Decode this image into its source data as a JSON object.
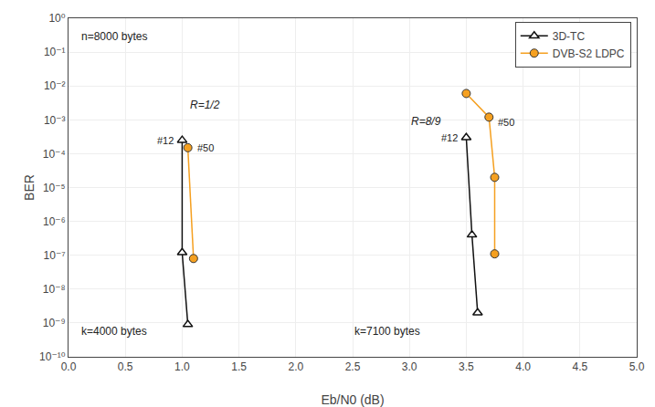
{
  "chart_data": {
    "type": "line",
    "xlabel": "Eb/N0 (dB)",
    "ylabel": "BER",
    "log": "y",
    "grid": true,
    "legend": "upper right",
    "xlim": [
      0,
      5
    ],
    "ylim": [
      1e-10,
      1
    ],
    "xticks": [
      {
        "value": 0,
        "label": "0.0"
      },
      0.5,
      {
        "value": 1.0,
        "label": "1.0"
      },
      1.5,
      {
        "value": 2.0,
        "label": "2.0"
      },
      2.5,
      {
        "value": 3.0,
        "label": "3.0"
      },
      3.5,
      {
        "value": 4.0,
        "label": "4.0"
      },
      4.5,
      {
        "value": 5.0,
        "label": "5.0"
      }
    ],
    "yticks": [
      {
        "value": 1e-10,
        "label": "10⁻¹⁰"
      },
      {
        "value": 1e-09,
        "label": "10⁻⁹"
      },
      {
        "value": 1e-08,
        "label": "10⁻⁸"
      },
      {
        "value": 1e-07,
        "label": "10⁻⁷"
      },
      {
        "value": 1e-06,
        "label": "10⁻⁶"
      },
      {
        "value": 1e-05,
        "label": "10⁻⁵"
      },
      {
        "value": 0.0001,
        "label": "10⁻⁴"
      },
      {
        "value": 0.001,
        "label": "10⁻³"
      },
      {
        "value": 0.01,
        "label": "10⁻²"
      },
      {
        "value": 0.1,
        "label": "10⁻¹"
      },
      {
        "value": 1,
        "label": "10⁰"
      }
    ],
    "series": [
      {
        "name": "3D-TC",
        "color": "#111111",
        "marker": "triangle",
        "x": [
          1.0,
          1.0,
          1.05
        ],
        "values": [
          0.00025,
          1.2e-07,
          9e-10
        ]
      },
      {
        "name": "DVB-S2 LDPC",
        "color": "#f5a020",
        "marker": "circle",
        "x": [
          1.05,
          1.1
        ],
        "values": [
          0.00015,
          8e-08
        ]
      },
      {
        "color": "#111111",
        "marker": "triangle",
        "x": [
          3.5,
          3.55,
          3.6
        ],
        "values": [
          0.0003,
          4e-07,
          2e-09
        ]
      },
      {
        "color": "#f5a020",
        "marker": "circle",
        "x": [
          3.5,
          3.7,
          3.75,
          3.75
        ],
        "values": [
          0.006,
          0.0012,
          2e-05,
          1.1e-07
        ]
      }
    ],
    "annotations": [
      {
        "text": "n=8000 bytes"
      },
      {
        "text": "k=4000 bytes"
      },
      {
        "text": "k=7100 bytes"
      },
      {
        "text": "R=1/2"
      },
      {
        "text": "R=8/9"
      },
      {
        "text": "#12",
        "x": 1.0,
        "y": 0.00025
      },
      {
        "text": "#50",
        "x": 1.05,
        "y": 0.00015
      },
      {
        "text": "#12",
        "x": 3.5,
        "y": 0.0003
      },
      {
        "text": "#50",
        "x": 3.7,
        "y": 0.0012
      }
    ]
  }
}
